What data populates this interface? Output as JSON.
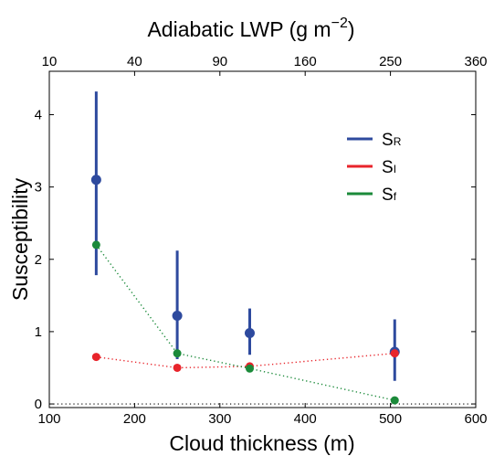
{
  "chart_data": {
    "type": "scatter",
    "xlabel": "Cloud thickness (m)",
    "ylabel": "Susceptibility",
    "top_xlabel": "Adiabatic LWP (g m",
    "top_xlabel_sup": "−2",
    "top_xlabel_end": ")",
    "xlim": [
      100,
      600
    ],
    "ylim": [
      -0.05,
      4.6
    ],
    "x_ticks": [
      100,
      200,
      300,
      400,
      500,
      600
    ],
    "y_ticks": [
      0,
      1,
      2,
      3,
      4
    ],
    "top_ticks": [
      {
        "value": 100,
        "label": "10"
      },
      {
        "value": 200,
        "label": "40"
      },
      {
        "value": 300,
        "label": "90"
      },
      {
        "value": 400,
        "label": "160"
      },
      {
        "value": 500,
        "label": "250"
      },
      {
        "value": 600,
        "label": "360"
      }
    ],
    "zero_line": true,
    "grid": false,
    "legend_position": "upper-right",
    "series": [
      {
        "name": "S",
        "subscript": "R",
        "color": "#2e4a9e",
        "connect": false,
        "x": [
          155,
          250,
          335,
          505
        ],
        "y": [
          3.1,
          1.22,
          0.98,
          0.72
        ],
        "err_low": [
          1.78,
          0.62,
          0.68,
          0.32
        ],
        "err_high": [
          4.32,
          2.12,
          1.32,
          1.17
        ]
      },
      {
        "name": "S",
        "subscript": "I",
        "color": "#e8242b",
        "connect": true,
        "x": [
          155,
          250,
          335,
          505
        ],
        "y": [
          0.65,
          0.5,
          0.52,
          0.7
        ]
      },
      {
        "name": "S",
        "subscript": "f",
        "color": "#1b8a3a",
        "connect": true,
        "x": [
          155,
          250,
          335,
          505
        ],
        "y": [
          2.2,
          0.7,
          0.49,
          0.05
        ]
      }
    ]
  }
}
